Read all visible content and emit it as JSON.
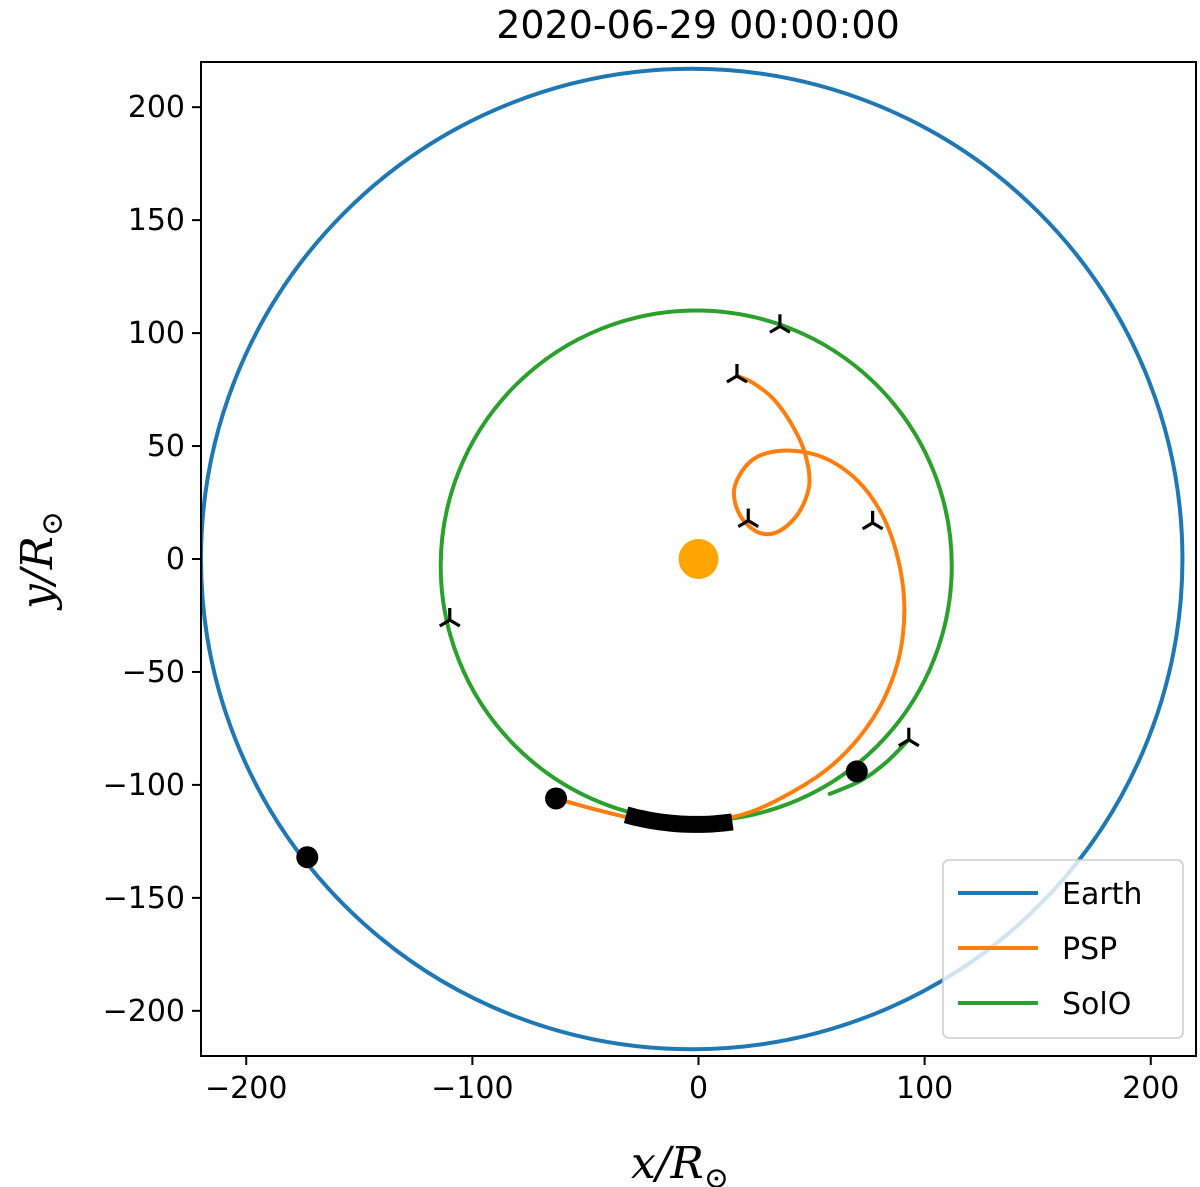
{
  "chart_data": {
    "type": "line",
    "title": "2020-06-29 00:00:00",
    "xlabel": "x/R",
    "ylabel": "y/R",
    "axis_label_subscript": "⊙",
    "xlim": [
      -220,
      220
    ],
    "ylim": [
      -220,
      220
    ],
    "xticks": [
      -200,
      -100,
      0,
      100,
      200
    ],
    "yticks": [
      -200,
      -150,
      -100,
      -50,
      0,
      50,
      100,
      150,
      200
    ],
    "grid": false,
    "legend_position": "bottom-right",
    "sun": {
      "x": 0,
      "y": 0,
      "color": "#ffa500"
    },
    "series": [
      {
        "name": "Earth",
        "color": "#1f77b4",
        "orbit": "circle",
        "center": [
          -3,
          0
        ],
        "radius": 217,
        "current_position": [
          -173,
          -132
        ]
      },
      {
        "name": "PSP",
        "color": "#ff7f0e",
        "points": [
          [
            -63,
            -106
          ],
          [
            -45,
            -111
          ],
          [
            -28,
            -115
          ],
          [
            -10,
            -117
          ],
          [
            6,
            -116
          ],
          [
            23,
            -112
          ],
          [
            40,
            -104
          ],
          [
            57,
            -93
          ],
          [
            71,
            -79
          ],
          [
            82,
            -62
          ],
          [
            89,
            -42
          ],
          [
            91,
            -20
          ],
          [
            88,
            1
          ],
          [
            81,
            20
          ],
          [
            70,
            35
          ],
          [
            55,
            45
          ],
          [
            38,
            48
          ],
          [
            24,
            44
          ],
          [
            16,
            32
          ],
          [
            18,
            20
          ],
          [
            26,
            12
          ],
          [
            35,
            12
          ],
          [
            44,
            20
          ],
          [
            49,
            33
          ],
          [
            47,
            47
          ],
          [
            41,
            60
          ],
          [
            33,
            71
          ],
          [
            24,
            78
          ],
          [
            17,
            81
          ]
        ],
        "current_position": [
          -63,
          -106
        ],
        "markers": [
          [
            17,
            81
          ],
          [
            22,
            17
          ],
          [
            77,
            16
          ]
        ]
      },
      {
        "name": "SolO",
        "color": "#2ca02c",
        "orbit": "circle",
        "center": [
          -1,
          -3
        ],
        "radius": 113,
        "arc_extension": [
          [
            58,
            -104
          ],
          [
            72,
            -98
          ],
          [
            83,
            -90
          ],
          [
            93,
            -80
          ]
        ],
        "current_position": [
          70,
          -94
        ],
        "markers": [
          [
            36,
            103
          ],
          [
            -110,
            -27
          ],
          [
            93,
            -80
          ]
        ]
      }
    ],
    "highlight_arc": {
      "center": [
        -1,
        -3
      ],
      "radius": 114.5,
      "x_from": -32,
      "x_to": 15,
      "color": "#000000"
    }
  }
}
